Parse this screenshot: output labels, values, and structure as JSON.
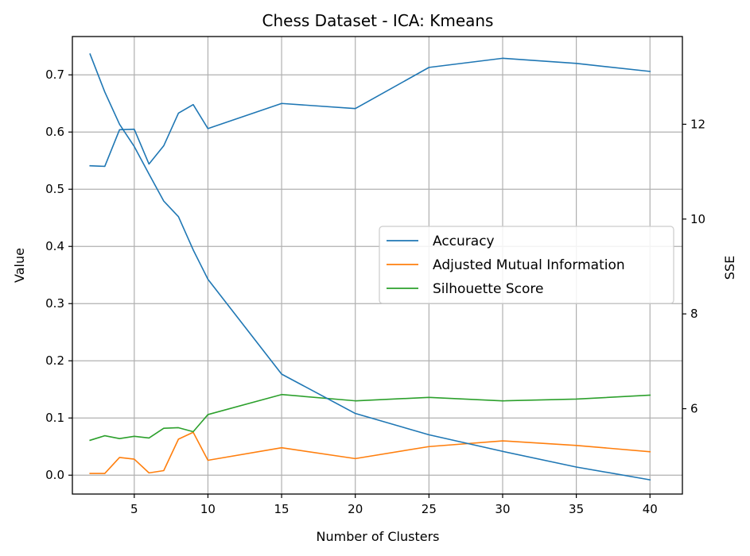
{
  "chart_data": {
    "type": "line",
    "title": "Chess Dataset - ICA: Kmeans",
    "xlabel": "Number of Clusters",
    "ylabel": "Value",
    "y2label": "SSE",
    "xlim": [
      0.8,
      42.2
    ],
    "ylim": [
      -0.033,
      0.767
    ],
    "y2lim": [
      4.2,
      13.85
    ],
    "xticks": [
      5,
      10,
      15,
      20,
      25,
      30,
      35,
      40
    ],
    "yticks": [
      0.0,
      0.1,
      0.2,
      0.3,
      0.4,
      0.5,
      0.6,
      0.7
    ],
    "y2ticks": [
      6,
      8,
      10,
      12
    ],
    "grid": true,
    "legend_position": "center-right",
    "series": [
      {
        "name": "Accuracy",
        "color": "#1f77b4",
        "axis": "left",
        "x": [
          2,
          3,
          4,
          5,
          6,
          7,
          8,
          9,
          10,
          15,
          20,
          25,
          30,
          35,
          40
        ],
        "values": [
          0.541,
          0.54,
          0.604,
          0.605,
          0.544,
          0.576,
          0.633,
          0.648,
          0.606,
          0.65,
          0.641,
          0.713,
          0.729,
          0.72,
          0.706
        ]
      },
      {
        "name": "Adjusted Mutual Information",
        "color": "#ff7f0e",
        "axis": "left",
        "x": [
          2,
          3,
          4,
          5,
          6,
          7,
          8,
          9,
          10,
          15,
          20,
          25,
          30,
          35,
          40
        ],
        "values": [
          0.003,
          0.003,
          0.031,
          0.028,
          0.004,
          0.008,
          0.063,
          0.075,
          0.026,
          0.048,
          0.029,
          0.05,
          0.06,
          0.052,
          0.041
        ]
      },
      {
        "name": "Silhouette Score",
        "color": "#2ca02c",
        "axis": "left",
        "x": [
          2,
          3,
          4,
          5,
          6,
          7,
          8,
          9,
          10,
          15,
          20,
          25,
          30,
          35,
          40
        ],
        "values": [
          0.061,
          0.069,
          0.064,
          0.068,
          0.065,
          0.082,
          0.083,
          0.076,
          0.106,
          0.141,
          0.13,
          0.136,
          0.13,
          0.133,
          0.14
        ]
      },
      {
        "name": "",
        "color": "#1f77b4",
        "axis": "right",
        "x": [
          2,
          3,
          4,
          5,
          6,
          7,
          8,
          9,
          10,
          15,
          20,
          25,
          30,
          35,
          40
        ],
        "values": [
          13.48,
          12.68,
          12.0,
          11.53,
          10.95,
          10.38,
          10.05,
          9.35,
          8.73,
          6.73,
          5.9,
          5.45,
          5.1,
          4.77,
          4.5
        ]
      }
    ]
  }
}
